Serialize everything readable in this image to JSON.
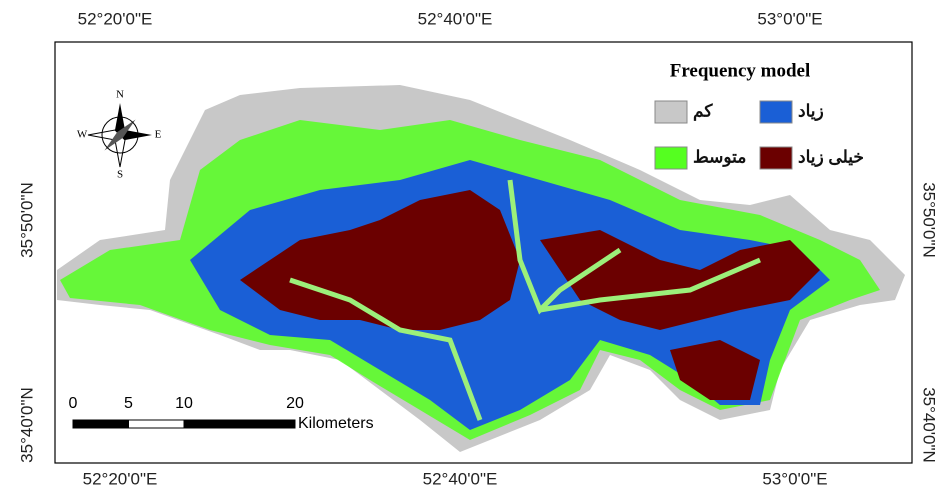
{
  "map": {
    "top_labels": [
      "52°20'0\"E",
      "52°40'0\"E",
      "53°0'0\"E"
    ],
    "bottom_labels": [
      "52°20'0\"E",
      "52°40'0\"E",
      "53°0'0\"E"
    ],
    "left_labels": [
      "35°50'0\"N",
      "35°40'0\"N"
    ],
    "right_labels": [
      "35°50'0\"N",
      "35°40'0\"N"
    ],
    "legend": {
      "title": "Frequency model",
      "items": [
        {
          "label": "کم",
          "color": "#c8c8c8"
        },
        {
          "label": "زیاد",
          "color": "#1a5fd6"
        },
        {
          "label": "متوسط",
          "color": "#55ff20"
        },
        {
          "label": "خیلی زیاد",
          "color": "#6b0000"
        }
      ]
    },
    "scale_bar": {
      "ticks": [
        0,
        5,
        10,
        20
      ],
      "unit": "Kilometers"
    },
    "compass": {
      "n": "N",
      "s": "S",
      "e": "E",
      "w": "W"
    }
  }
}
